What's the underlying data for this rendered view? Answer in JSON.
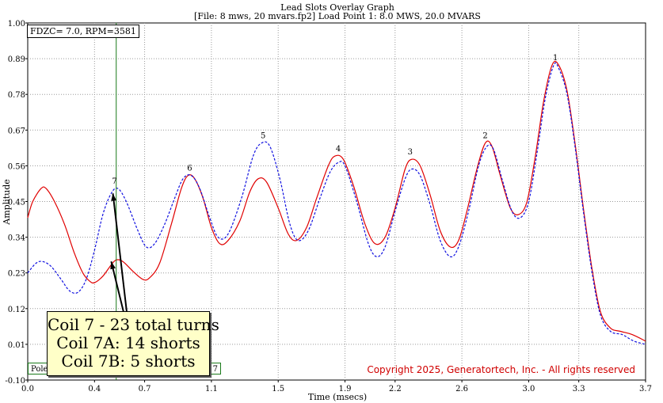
{
  "chart_data": {
    "type": "line",
    "title": "Lead Slots Overlay Graph",
    "subtitle": "[File: 8 mws, 20 mvars.fp2]  Load Point 1:   8.0 MWS,  20.0 MVARS",
    "xlabel": "Time (msecs)",
    "ylabel": "Amplitude",
    "xlim": [
      0.0,
      3.7
    ],
    "ylim": [
      -0.1,
      1.0
    ],
    "x_ticks": [
      "0.0",
      "0.4",
      "0.7",
      "1.1",
      "1.5",
      "1.9",
      "2.2",
      "2.6",
      "3.0",
      "3.3",
      "3.7"
    ],
    "y_ticks": [
      "-0.10",
      "0.01",
      "0.12",
      "0.23",
      "0.34",
      "0.45",
      "0.56",
      "0.67",
      "0.78",
      "0.89",
      "1.00"
    ],
    "grid": "dotted",
    "cursor_x": 0.53,
    "series": [
      {
        "style": "solid",
        "color": "#e00000",
        "points": [
          [
            0.0,
            0.4
          ],
          [
            0.03,
            0.45
          ],
          [
            0.08,
            0.49
          ],
          [
            0.11,
            0.49
          ],
          [
            0.16,
            0.45
          ],
          [
            0.22,
            0.38
          ],
          [
            0.28,
            0.29
          ],
          [
            0.33,
            0.23
          ],
          [
            0.37,
            0.205
          ],
          [
            0.4,
            0.2
          ],
          [
            0.45,
            0.22
          ],
          [
            0.5,
            0.255
          ],
          [
            0.53,
            0.27
          ],
          [
            0.57,
            0.265
          ],
          [
            0.63,
            0.235
          ],
          [
            0.69,
            0.21
          ],
          [
            0.73,
            0.215
          ],
          [
            0.79,
            0.26
          ],
          [
            0.86,
            0.38
          ],
          [
            0.92,
            0.49
          ],
          [
            0.96,
            0.53
          ],
          [
            1.0,
            0.52
          ],
          [
            1.05,
            0.46
          ],
          [
            1.1,
            0.37
          ],
          [
            1.15,
            0.32
          ],
          [
            1.2,
            0.33
          ],
          [
            1.27,
            0.39
          ],
          [
            1.33,
            0.48
          ],
          [
            1.38,
            0.52
          ],
          [
            1.43,
            0.51
          ],
          [
            1.5,
            0.43
          ],
          [
            1.56,
            0.35
          ],
          [
            1.61,
            0.33
          ],
          [
            1.67,
            0.37
          ],
          [
            1.73,
            0.46
          ],
          [
            1.8,
            0.56
          ],
          [
            1.84,
            0.59
          ],
          [
            1.89,
            0.58
          ],
          [
            1.95,
            0.5
          ],
          [
            2.02,
            0.38
          ],
          [
            2.08,
            0.32
          ],
          [
            2.14,
            0.34
          ],
          [
            2.2,
            0.43
          ],
          [
            2.26,
            0.55
          ],
          [
            2.3,
            0.58
          ],
          [
            2.35,
            0.56
          ],
          [
            2.41,
            0.47
          ],
          [
            2.47,
            0.36
          ],
          [
            2.53,
            0.31
          ],
          [
            2.58,
            0.33
          ],
          [
            2.63,
            0.42
          ],
          [
            2.69,
            0.55
          ],
          [
            2.74,
            0.63
          ],
          [
            2.78,
            0.62
          ],
          [
            2.83,
            0.53
          ],
          [
            2.89,
            0.43
          ],
          [
            2.94,
            0.41
          ],
          [
            2.99,
            0.45
          ],
          [
            3.04,
            0.59
          ],
          [
            3.09,
            0.76
          ],
          [
            3.14,
            0.87
          ],
          [
            3.18,
            0.87
          ],
          [
            3.23,
            0.79
          ],
          [
            3.28,
            0.62
          ],
          [
            3.33,
            0.42
          ],
          [
            3.38,
            0.24
          ],
          [
            3.43,
            0.11
          ],
          [
            3.49,
            0.06
          ],
          [
            3.55,
            0.05
          ],
          [
            3.62,
            0.04
          ],
          [
            3.7,
            0.02
          ]
        ]
      },
      {
        "style": "dashed",
        "color": "#1010e0",
        "points": [
          [
            0.0,
            0.23
          ],
          [
            0.05,
            0.26
          ],
          [
            0.09,
            0.265
          ],
          [
            0.14,
            0.25
          ],
          [
            0.2,
            0.21
          ],
          [
            0.25,
            0.175
          ],
          [
            0.3,
            0.17
          ],
          [
            0.35,
            0.21
          ],
          [
            0.4,
            0.3
          ],
          [
            0.45,
            0.41
          ],
          [
            0.5,
            0.475
          ],
          [
            0.54,
            0.49
          ],
          [
            0.59,
            0.45
          ],
          [
            0.66,
            0.36
          ],
          [
            0.71,
            0.31
          ],
          [
            0.76,
            0.32
          ],
          [
            0.82,
            0.38
          ],
          [
            0.88,
            0.46
          ],
          [
            0.93,
            0.52
          ],
          [
            0.98,
            0.53
          ],
          [
            1.03,
            0.49
          ],
          [
            1.09,
            0.4
          ],
          [
            1.14,
            0.34
          ],
          [
            1.2,
            0.35
          ],
          [
            1.28,
            0.46
          ],
          [
            1.35,
            0.59
          ],
          [
            1.4,
            0.63
          ],
          [
            1.45,
            0.62
          ],
          [
            1.51,
            0.52
          ],
          [
            1.57,
            0.38
          ],
          [
            1.62,
            0.33
          ],
          [
            1.68,
            0.36
          ],
          [
            1.75,
            0.46
          ],
          [
            1.81,
            0.54
          ],
          [
            1.86,
            0.57
          ],
          [
            1.9,
            0.56
          ],
          [
            1.97,
            0.45
          ],
          [
            2.04,
            0.32
          ],
          [
            2.09,
            0.28
          ],
          [
            2.14,
            0.31
          ],
          [
            2.2,
            0.42
          ],
          [
            2.26,
            0.52
          ],
          [
            2.3,
            0.55
          ],
          [
            2.35,
            0.53
          ],
          [
            2.41,
            0.44
          ],
          [
            2.47,
            0.33
          ],
          [
            2.53,
            0.28
          ],
          [
            2.58,
            0.31
          ],
          [
            2.64,
            0.42
          ],
          [
            2.7,
            0.56
          ],
          [
            2.75,
            0.62
          ],
          [
            2.79,
            0.61
          ],
          [
            2.84,
            0.52
          ],
          [
            2.9,
            0.42
          ],
          [
            2.95,
            0.4
          ],
          [
            3.0,
            0.45
          ],
          [
            3.05,
            0.6
          ],
          [
            3.1,
            0.77
          ],
          [
            3.15,
            0.87
          ],
          [
            3.18,
            0.86
          ],
          [
            3.23,
            0.78
          ],
          [
            3.28,
            0.61
          ],
          [
            3.33,
            0.41
          ],
          [
            3.38,
            0.23
          ],
          [
            3.43,
            0.1
          ],
          [
            3.49,
            0.05
          ],
          [
            3.56,
            0.04
          ],
          [
            3.63,
            0.02
          ],
          [
            3.7,
            0.01
          ]
        ]
      }
    ],
    "peak_labels": [
      {
        "label": "1",
        "x": 3.16,
        "y": 0.88
      },
      {
        "label": "2",
        "x": 2.74,
        "y": 0.64
      },
      {
        "label": "3",
        "x": 2.29,
        "y": 0.59
      },
      {
        "label": "4",
        "x": 1.86,
        "y": 0.6
      },
      {
        "label": "5",
        "x": 1.41,
        "y": 0.64
      },
      {
        "label": "6",
        "x": 0.97,
        "y": 0.54
      },
      {
        "label": "7",
        "x": 0.52,
        "y": 0.5
      }
    ],
    "annotations": {
      "info": "FDZC= 7.0, RPM=3581",
      "callout_lines": [
        "Coil 7 - 23 total turns",
        "Coil 7A: 14 shorts",
        "Coil 7B: 5 shorts"
      ],
      "legend_left": "Pole",
      "legend_right": "7",
      "copyright": "Copyright 2025, Generatortech, Inc. - All rights reserved"
    },
    "colors": {
      "solid_series": "#e00000",
      "dashed_series": "#1010e0",
      "cursor": "#1a7a1a",
      "copyright": "#d00000",
      "callout_bg": "#ffffc8"
    }
  }
}
